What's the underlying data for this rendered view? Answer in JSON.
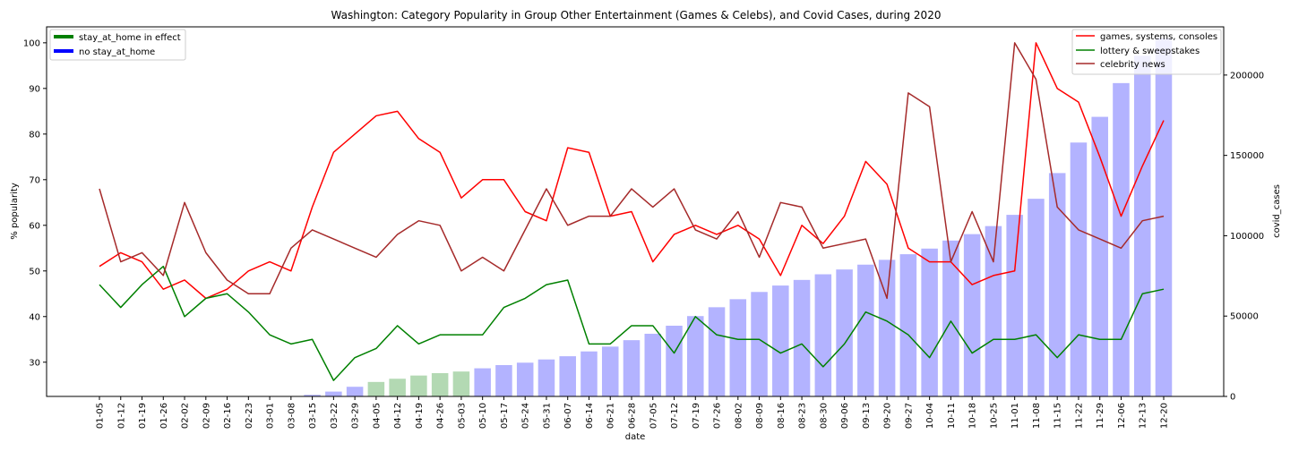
{
  "chart_data": {
    "type": "line",
    "title": "Washington: Category Popularity in Group Other Entertainment (Games & Celebs), and Covid Cases, during 2020",
    "xlabel": "date",
    "ylabel": "% popularity",
    "y2label": "covid_cases",
    "ylim": [
      22.5,
      103.5
    ],
    "y2lim": [
      0,
      230000
    ],
    "yticks": [
      30,
      40,
      50,
      60,
      70,
      80,
      90,
      100
    ],
    "y2ticks": [
      0,
      50000,
      100000,
      150000,
      200000
    ],
    "categories": [
      "01-05",
      "01-12",
      "01-19",
      "01-26",
      "02-02",
      "02-09",
      "02-16",
      "02-23",
      "03-01",
      "03-08",
      "03-15",
      "03-22",
      "03-29",
      "04-05",
      "04-12",
      "04-19",
      "04-26",
      "05-03",
      "05-10",
      "05-17",
      "05-24",
      "05-31",
      "06-07",
      "06-14",
      "06-21",
      "06-28",
      "07-05",
      "07-12",
      "07-19",
      "07-26",
      "08-02",
      "08-09",
      "08-16",
      "08-23",
      "08-30",
      "09-06",
      "09-13",
      "09-20",
      "09-27",
      "10-04",
      "10-11",
      "10-18",
      "10-25",
      "11-01",
      "11-08",
      "11-15",
      "11-22",
      "11-29",
      "12-06",
      "12-13",
      "12-20"
    ],
    "series": [
      {
        "name": "games, systems, consoles",
        "color": "#ff0000",
        "values": [
          51,
          54,
          52,
          46,
          48,
          44,
          46,
          50,
          52,
          50,
          64,
          76,
          80,
          84,
          85,
          79,
          76,
          66,
          70,
          70,
          63,
          61,
          77,
          76,
          62,
          63,
          52,
          58,
          60,
          58,
          60,
          57,
          49,
          60,
          56,
          62,
          74,
          69,
          55,
          52,
          52,
          47,
          49,
          50,
          100,
          90,
          87,
          75,
          62,
          73,
          83
        ]
      },
      {
        "name": "lottery & sweepstakes",
        "color": "#008000",
        "values": [
          47,
          42,
          47,
          51,
          40,
          44,
          45,
          41,
          36,
          34,
          35,
          26,
          31,
          33,
          38,
          34,
          36,
          36,
          36,
          42,
          44,
          47,
          48,
          34,
          34,
          38,
          38,
          32,
          40,
          36,
          35,
          35,
          32,
          34,
          29,
          34,
          41,
          39,
          36,
          31,
          39,
          32,
          35,
          35,
          36,
          31,
          36,
          35,
          35,
          45,
          46
        ]
      },
      {
        "name": "celebrity news",
        "color": "#a52a2a",
        "values": [
          68,
          52,
          54,
          49,
          65,
          54,
          48,
          45,
          45,
          55,
          59,
          57,
          55,
          53,
          58,
          61,
          60,
          50,
          53,
          50,
          59,
          68,
          60,
          62,
          62,
          68,
          64,
          68,
          59,
          57,
          63,
          53,
          65,
          64,
          55,
          56,
          57,
          44,
          89,
          86,
          52,
          63,
          52,
          100,
          92,
          64,
          59,
          57,
          55,
          61,
          62
        ]
      }
    ],
    "bars": {
      "name": "covid_cases",
      "colors": {
        "stay_at_home": "#b3d9b3",
        "no_stay_at_home": "#b3b3ff"
      },
      "values": [
        0,
        0,
        0,
        0,
        0,
        0,
        0,
        0,
        0,
        0,
        1000,
        3000,
        6000,
        9000,
        11000,
        13000,
        14500,
        15500,
        17500,
        19500,
        21000,
        23000,
        25000,
        28000,
        31000,
        35000,
        39000,
        44000,
        50000,
        55500,
        60500,
        65000,
        69000,
        72500,
        76000,
        79000,
        82000,
        85000,
        88500,
        92000,
        97000,
        101000,
        106000,
        113000,
        123000,
        139000,
        158000,
        174000,
        195000,
        212000,
        223000
      ],
      "stay_at_home": [
        false,
        false,
        false,
        false,
        false,
        false,
        false,
        false,
        false,
        false,
        false,
        false,
        false,
        true,
        true,
        true,
        true,
        true,
        false,
        false,
        false,
        false,
        false,
        false,
        false,
        false,
        false,
        false,
        false,
        false,
        false,
        false,
        false,
        false,
        false,
        false,
        false,
        false,
        false,
        false,
        false,
        false,
        false,
        false,
        false,
        false,
        false,
        false,
        false,
        false,
        false
      ]
    },
    "legend_left": [
      {
        "label": "stay_at_home in effect",
        "color": "#008000"
      },
      {
        "label": "no stay_at_home",
        "color": "#0000ff"
      }
    ],
    "legend_left_placement": "top-left",
    "legend_right_placement": "top-right",
    "grid": false
  }
}
